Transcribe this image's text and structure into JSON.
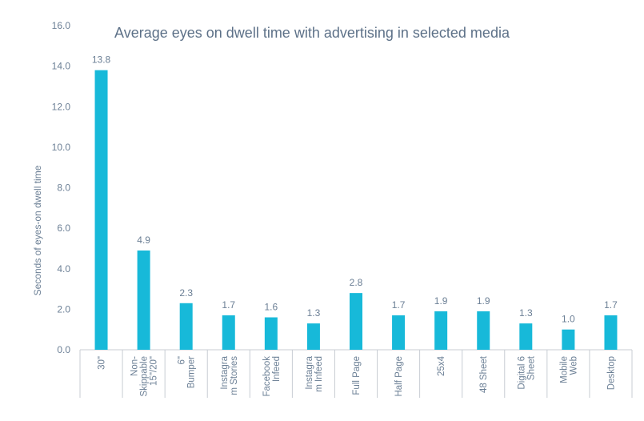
{
  "chart_data": {
    "type": "bar",
    "title": "Average eyes on dwell time with advertising in selected media",
    "xlabel": "",
    "ylabel": "Seconds of eyes-on dwell time",
    "ylim": [
      0,
      16
    ],
    "yticks": [
      "0.0",
      "2.0",
      "4.0",
      "6.0",
      "8.0",
      "10.0",
      "12.0",
      "14.0",
      "16.0"
    ],
    "grid": false,
    "categories": [
      [
        "30\""
      ],
      [
        "Non-",
        "Skippable",
        "15\"/20\""
      ],
      [
        "6\"",
        "Bumper"
      ],
      [
        "Instagra",
        "m Stories"
      ],
      [
        "Facebook",
        "Infeed"
      ],
      [
        "Instagra",
        "m Infeed"
      ],
      [
        "Full Page"
      ],
      [
        "Half Page"
      ],
      [
        "25x4"
      ],
      [
        "48 Sheet"
      ],
      [
        "Digital 6",
        "Sheet"
      ],
      [
        "Mobile",
        "Web"
      ],
      [
        "Desktop"
      ]
    ],
    "values": [
      13.8,
      4.9,
      2.3,
      1.7,
      1.6,
      1.3,
      2.8,
      1.7,
      1.9,
      1.9,
      1.3,
      1.0,
      1.7
    ],
    "value_labels": [
      "13.8",
      "4.9",
      "2.3",
      "1.7",
      "1.6",
      "1.3",
      "2.8",
      "1.7",
      "1.9",
      "1.9",
      "1.3",
      "1.0",
      "1.7"
    ],
    "colors": {
      "bar": "#17b9d9",
      "axis_text": "#6b7f95",
      "title": "#5d7188",
      "axis_line": "#c8cdd3"
    }
  }
}
